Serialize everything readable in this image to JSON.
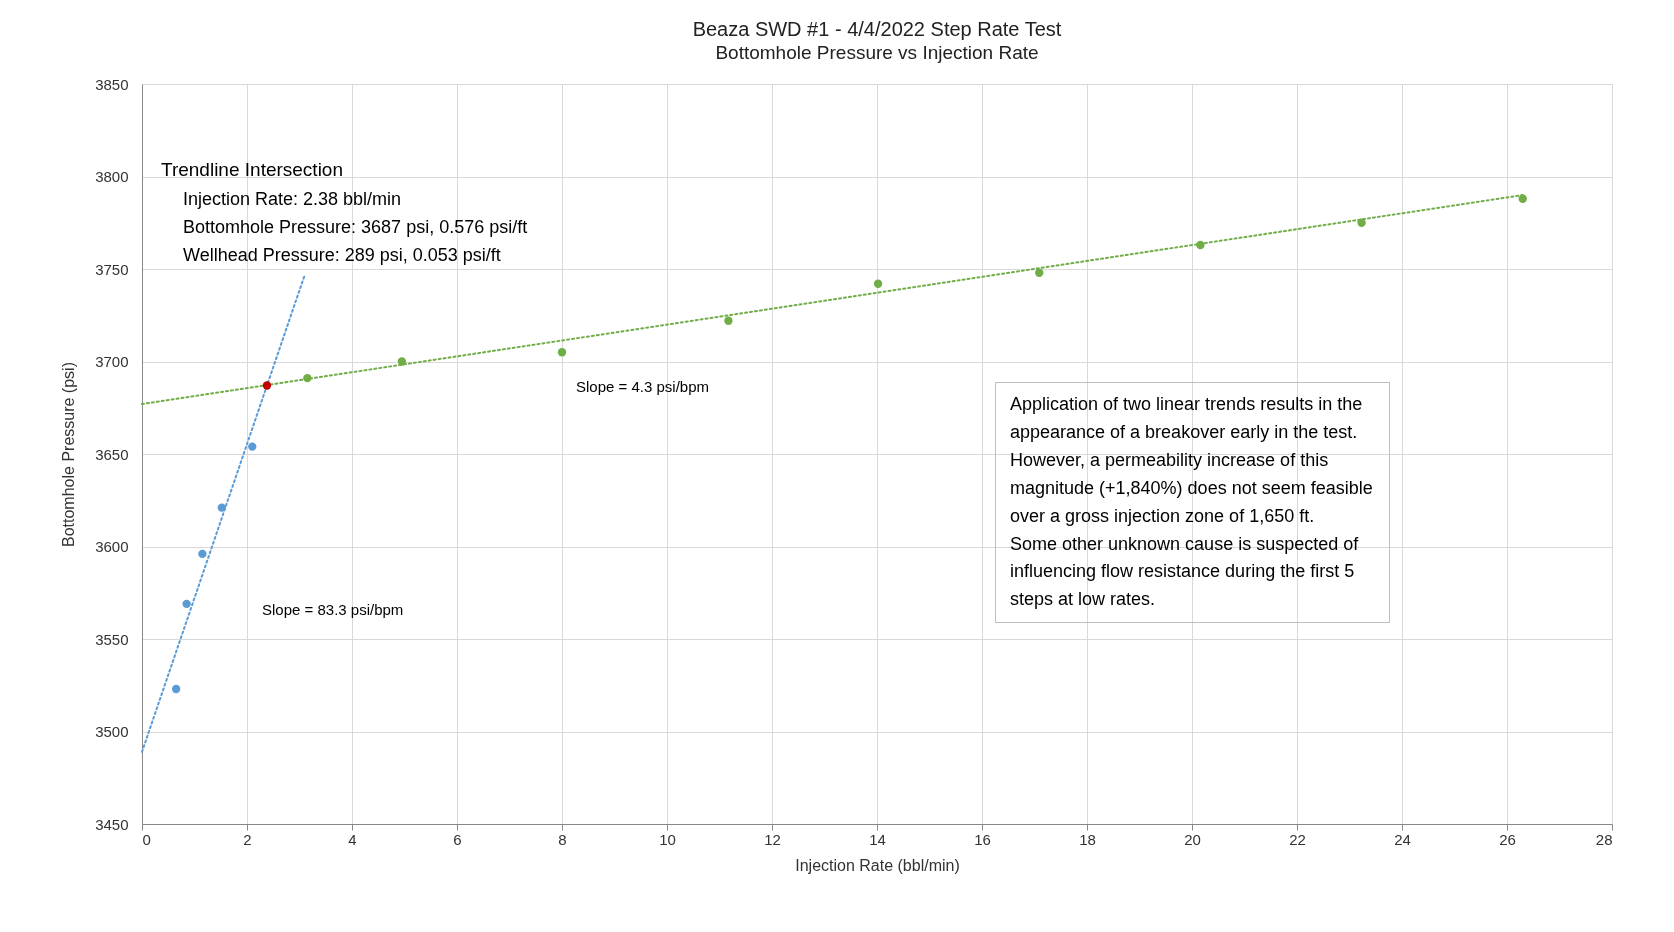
{
  "chart_data": {
    "type": "scatter",
    "title": "Beaza SWD #1 - 4/4/2022 Step Rate Test",
    "subtitle": "Bottomhole Pressure vs Injection Rate",
    "xlabel": "Injection Rate (bbl/min)",
    "ylabel": "Bottomhole Pressure (psi)",
    "series": [
      {
        "type": "line",
        "color": "#5b9bd5",
        "x": [
          0,
          3.09
        ],
        "values": [
          3489,
          3746
        ],
        "line_style": "dotted",
        "marker": "none"
      },
      {
        "type": "line",
        "color": "#70ad47",
        "x": [
          0,
          26.3
        ],
        "values": [
          3677,
          3790
        ],
        "line_style": "dotted",
        "marker": "none"
      },
      {
        "color": "#5b9bd5",
        "x": [
          0.65,
          0.85,
          1.15,
          1.52,
          2.1
        ],
        "values": [
          3523,
          3569,
          3596,
          3621,
          3654
        ],
        "marker": "circle"
      },
      {
        "color": "#70ad47",
        "x": [
          3.15,
          4.95,
          8.0,
          11.17,
          14.02,
          17.09,
          20.16,
          23.23,
          26.3
        ],
        "values": [
          3691,
          3700,
          3705,
          3722,
          3742,
          3748,
          3763,
          3775,
          3788
        ],
        "marker": "circle"
      },
      {
        "color": "#c00000",
        "x": [
          2.38
        ],
        "values": [
          3687
        ],
        "marker": "circle"
      }
    ],
    "xlim": [
      0,
      28
    ],
    "xticks": [
      0,
      2,
      4,
      6,
      8,
      10,
      12,
      14,
      16,
      18,
      20,
      22,
      24,
      26,
      28
    ],
    "ylim": [
      3450,
      3850
    ],
    "yticks": [
      3450,
      3500,
      3550,
      3600,
      3650,
      3700,
      3750,
      3800,
      3850
    ],
    "grid": true,
    "annotations": [
      "Trendline Intersection",
      "Injection Rate: 2.38 bbl/min\nBottomhole Pressure: 3687 psi, 0.576 psi/ft\nWellhead Pressure: 289 psi, 0.053 psi/ft",
      "Application of two linear trends results in the\nappearance of a breakover early in the test.\nHowever, a permeability increase of this\nmagnitude (+1,840%) does not seem feasible\nover a gross injection zone of 1,650 ft.\nSome other unknown cause is suspected of\ninfluencing flow resistance during the first 5\nsteps at low rates.",
      "Slope = 4.3 psi/bpm",
      "Slope = 83.3 psi/bpm"
    ]
  }
}
